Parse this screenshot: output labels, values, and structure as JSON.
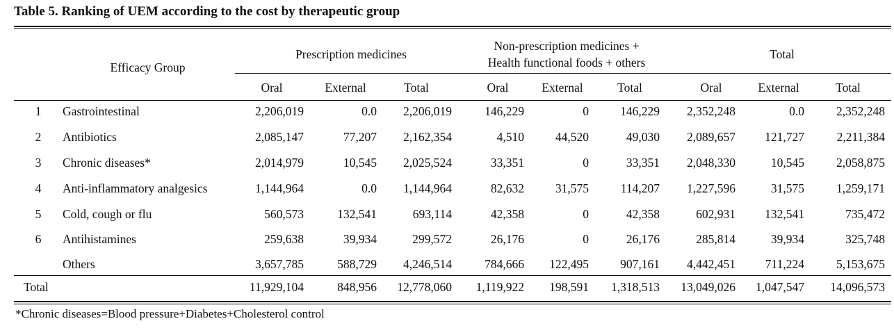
{
  "title": "Table 5. Ranking of UEM according to the cost by therapeutic group",
  "header": {
    "efficacy_group": "Efficacy Group",
    "group1": "Prescription medicines",
    "group2_line1": "Non-prescription medicines +",
    "group2_line2": "Health functional foods + others",
    "group3": "Total",
    "sub": [
      "Oral",
      "External",
      "Total",
      "Oral",
      "External",
      "Total",
      "Oral",
      "External",
      "Total"
    ]
  },
  "rows": [
    {
      "rank": "1",
      "name": "Gastrointestinal",
      "values": [
        "2,206,019",
        "0.0",
        "2,206,019",
        "146,229",
        "0",
        "146,229",
        "2,352,248",
        "0.0",
        "2,352,248"
      ]
    },
    {
      "rank": "2",
      "name": "Antibiotics",
      "values": [
        "2,085,147",
        "77,207",
        "2,162,354",
        "4,510",
        "44,520",
        "49,030",
        "2,089,657",
        "121,727",
        "2,211,384"
      ]
    },
    {
      "rank": "3",
      "name": "Chronic diseases*",
      "values": [
        "2,014,979",
        "10,545",
        "2,025,524",
        "33,351",
        "0",
        "33,351",
        "2,048,330",
        "10,545",
        "2,058,875"
      ]
    },
    {
      "rank": "4",
      "name": "Anti-inflammatory analgesics",
      "values": [
        "1,144,964",
        "0.0",
        "1,144,964",
        "82,632",
        "31,575",
        "114,207",
        "1,227,596",
        "31,575",
        "1,259,171"
      ]
    },
    {
      "rank": "5",
      "name": "Cold, cough or flu",
      "values": [
        "560,573",
        "132,541",
        "693,114",
        "42,358",
        "0",
        "42,358",
        "602,931",
        "132,541",
        "735,472"
      ]
    },
    {
      "rank": "6",
      "name": "Antihistamines",
      "values": [
        "259,638",
        "39,934",
        "299,572",
        "26,176",
        "0",
        "26,176",
        "285,814",
        "39,934",
        "325,748"
      ]
    },
    {
      "rank": "",
      "name": "Others",
      "values": [
        "3,657,785",
        "588,729",
        "4,246,514",
        "784,666",
        "122,495",
        "907,161",
        "4,442,451",
        "711,224",
        "5,153,675"
      ]
    }
  ],
  "total_row": {
    "label": "Total",
    "values": [
      "11,929,104",
      "848,956",
      "12,778,060",
      "1,119,922",
      "198,591",
      "1,318,513",
      "13,049,026",
      "1,047,547",
      "14,096,573"
    ]
  },
  "footnote": "*Chronic diseases=Blood pressure+Diabetes+Cholesterol control"
}
